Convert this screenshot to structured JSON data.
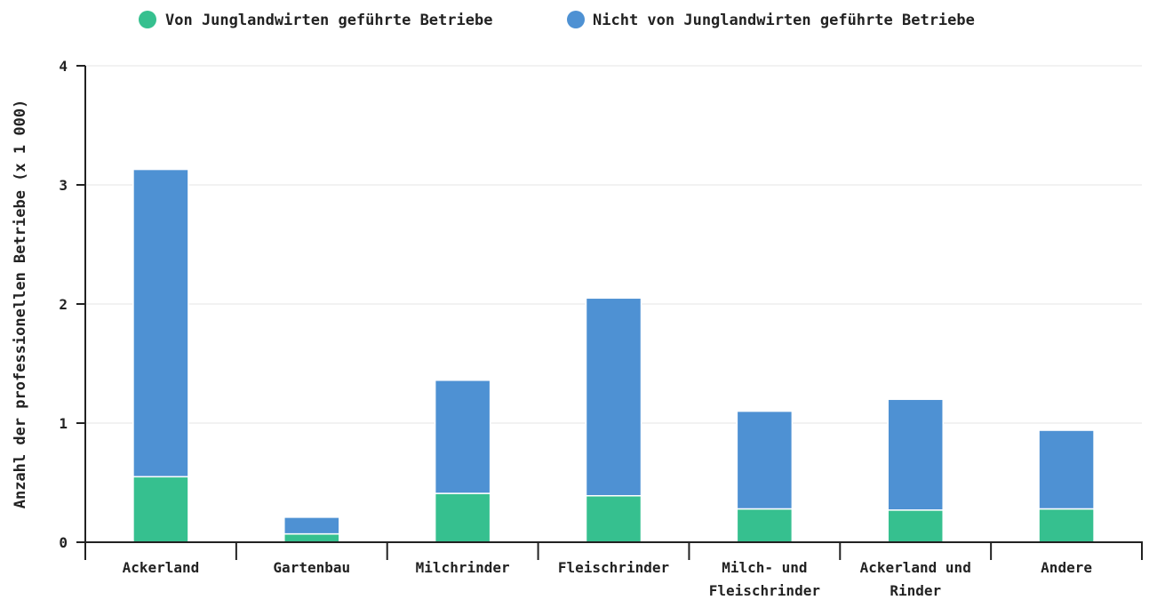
{
  "chart_data": {
    "type": "bar",
    "stacked": true,
    "ylabel": "Anzahl der professionellen Betriebe (x 1 000)",
    "xlabel": "",
    "ylim": [
      0,
      4
    ],
    "yticks": [
      "0",
      "1",
      "2",
      "3",
      "4"
    ],
    "grid": true,
    "legend_position": "top",
    "categories": [
      [
        "Ackerland"
      ],
      [
        "Gartenbau"
      ],
      [
        "Milchrinder"
      ],
      [
        "Fleischrinder"
      ],
      [
        "Milch- und",
        "Fleischrinder"
      ],
      [
        "Ackerland und",
        "Rinder"
      ],
      [
        "Andere"
      ]
    ],
    "series": [
      {
        "name": "Von Junglandwirten geführte Betriebe",
        "color": "#36c08f",
        "values": [
          0.55,
          0.07,
          0.41,
          0.39,
          0.28,
          0.27,
          0.28
        ]
      },
      {
        "name": "Nicht von Junglandwirten geführte Betriebe",
        "color": "#4e91d3",
        "values": [
          2.58,
          0.14,
          0.95,
          1.66,
          0.82,
          0.93,
          0.66
        ]
      }
    ]
  }
}
